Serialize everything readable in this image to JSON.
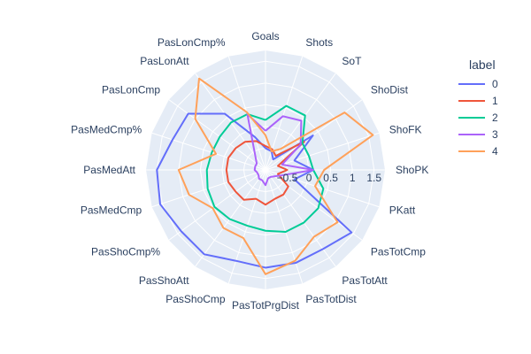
{
  "chart_data": {
    "type": "radar",
    "axes": [
      "Goals",
      "Shots",
      "SoT",
      "ShoDist",
      "ShoFK",
      "ShoPK",
      "PKatt",
      "PasTotCmp",
      "PasTotAtt",
      "PasTotDist",
      "PasTotPrgDist",
      "PasShoCmp",
      "PasShoAtt",
      "PasShoCmp%",
      "PasMedCmp",
      "PasMedAtt",
      "PasMedCmp%",
      "PasLonCmp",
      "PasLonAtt",
      "PasLonCmp%"
    ],
    "radial_range": [
      -1.0,
      1.75
    ],
    "radial_ticks": [
      -0.5,
      0,
      0.5,
      1,
      1.5
    ],
    "radial_tick_labels": [
      "−0.5",
      "0",
      "0.5",
      "1",
      "1.5"
    ],
    "legend_title": "label",
    "series": [
      {
        "name": "0",
        "color": "#636efa",
        "values": [
          -0.5,
          -0.55,
          -0.7,
          0.35,
          -0.3,
          0.1,
          -0.3,
          1.45,
          1.25,
          1.25,
          1.25,
          1.2,
          1.4,
          1.4,
          1.55,
          1.5,
          1.25,
          1.2,
          0.6,
          -0.2
        ]
      },
      {
        "name": "1",
        "color": "#EF553B",
        "values": [
          -0.45,
          -0.5,
          -0.6,
          0.1,
          -0.7,
          -0.5,
          -0.7,
          -0.35,
          -0.3,
          -0.3,
          -0.2,
          -0.3,
          -0.15,
          -0.15,
          -0.1,
          -0.1,
          -0.1,
          -0.15,
          -0.2,
          -0.3
        ]
      },
      {
        "name": "2",
        "color": "#00cc96",
        "values": [
          0.15,
          0.55,
          0.55,
          0.05,
          0.05,
          0.1,
          0.4,
          0.5,
          0.5,
          0.5,
          0.4,
          0.35,
          0.4,
          0.45,
          0.4,
          0.35,
          0.3,
          0.3,
          0.35,
          0.35
        ]
      },
      {
        "name": "3",
        "color": "#ab63fa",
        "values": [
          -0.1,
          0.3,
          0.4,
          0.0,
          -0.6,
          0.1,
          -0.6,
          -0.75,
          -0.8,
          -0.8,
          -0.65,
          -0.75,
          -0.75,
          -0.8,
          -0.8,
          -0.75,
          -0.75,
          -0.75,
          -0.6,
          0.35
        ]
      },
      {
        "name": "4",
        "color": "#FFA15A",
        "values": [
          -0.2,
          -0.55,
          -0.4,
          1.25,
          1.6,
          0.35,
          0.2,
          1.05,
          0.9,
          1.2,
          1.4,
          0.65,
          0.65,
          0.5,
          0.85,
          1.0,
          0.2,
          1.0,
          1.6,
          0.4
        ]
      }
    ]
  }
}
